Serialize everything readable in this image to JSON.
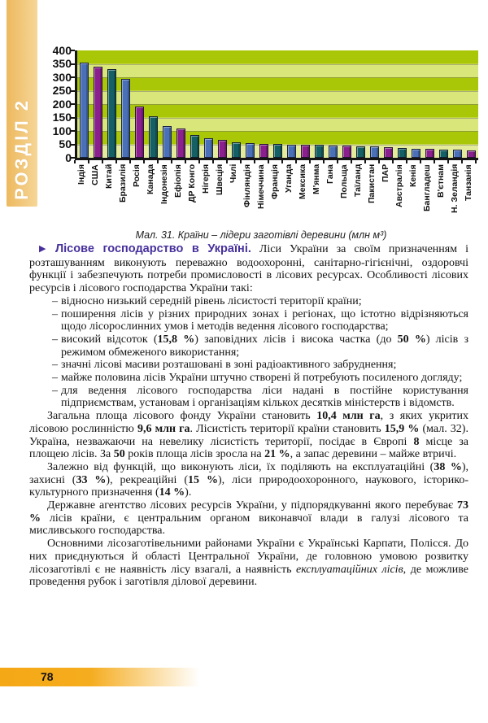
{
  "page": {
    "section_label": "РОЗДІЛ 2",
    "page_number": "78"
  },
  "chart_data": {
    "type": "bar",
    "caption": "Мал. 31. Країни – лідери заготівлі деревини (млн м³)",
    "unit": "млн м³",
    "categories": [
      "Індія",
      "США",
      "Китай",
      "Бразилія",
      "Росія",
      "Канада",
      "Індонезія",
      "Ефіопія",
      "ДР Конго",
      "Нігерія",
      "Швеція",
      "Чилі",
      "Фінляндія",
      "Німеччина",
      "Франція",
      "Уганда",
      "Мексика",
      "М'янма",
      "Гана",
      "Польща",
      "Таїланд",
      "Пакистан",
      "ПАР",
      "Австралія",
      "Кенія",
      "Бангладеш",
      "В'єтнам",
      "Н. Зеландія",
      "Танзанія"
    ],
    "values": [
      355,
      340,
      330,
      295,
      190,
      155,
      117,
      110,
      86,
      72,
      68,
      57,
      55,
      53,
      51,
      50,
      50,
      49,
      46,
      44,
      42,
      41,
      38,
      37,
      33,
      33,
      31,
      30,
      28
    ],
    "ylim": [
      0,
      400
    ],
    "ytick_step": 50,
    "grid": true,
    "legend": false,
    "bar_color_cycle": [
      "#4a70b8",
      "#8a1f8d",
      "#156065"
    ],
    "plot_stripe_dark": "#a9c607",
    "plot_stripe_light": "#d9e67a",
    "plot_stripe_bottom": "#e4ec9c"
  },
  "article": {
    "marker": "▶",
    "bullet_marker": "–",
    "heading": "Лісове господарство в Україні.",
    "paragraphs": [
      {
        "kind": "lead",
        "segments": [
          {
            "t": "Лісове господарство в Україні.",
            "heading": true
          },
          {
            "t": " Ліси України за своїм призначенням і розташуванням виконують переважно водоохоронні, санітарно-гігієнічні, оздоровчі функції і забезпечують потреби промисловості в лісових ресурсах. Особливості лісових ресурсів і лісового господарства України такі:"
          }
        ]
      },
      {
        "kind": "bullet",
        "segments": [
          {
            "t": "відносно низький середній рівень лісистості території країни;"
          }
        ]
      },
      {
        "kind": "bullet",
        "segments": [
          {
            "t": "поширення лісів у різних природних зонах і регіонах, що істотно відрізняються щодо лісорослинних умов і методів ведення лісового господарства;"
          }
        ]
      },
      {
        "kind": "bullet",
        "segments": [
          {
            "t": "високий відсоток ("
          },
          {
            "t": "15,8 %",
            "b": true
          },
          {
            "t": ") заповідних лісів і висока частка (до "
          },
          {
            "t": "50 %",
            "b": true
          },
          {
            "t": ") лісів з режимом обмеженого використання;"
          }
        ]
      },
      {
        "kind": "bullet",
        "segments": [
          {
            "t": "значні лісові масиви розташовані в зоні радіоактивного забруднення;"
          }
        ]
      },
      {
        "kind": "bullet",
        "segments": [
          {
            "t": "майже половина лісів України штучно створені й потребують посиленого догляду;"
          }
        ]
      },
      {
        "kind": "bullet",
        "segments": [
          {
            "t": "для ведення лісового господарства ліси надані в постійне користування підприємствам, установам і організаціям кількох десятків міністерств і відомств."
          }
        ]
      },
      {
        "kind": "indent",
        "segments": [
          {
            "t": "Загальна площа лісового фонду України становить "
          },
          {
            "t": "10,4 млн га",
            "b": true
          },
          {
            "t": ", з яких укритих лісовою рослинністю "
          },
          {
            "t": "9,6 млн га",
            "b": true
          },
          {
            "t": ". Лісистість території країни становить "
          },
          {
            "t": "15,9 %",
            "b": true
          },
          {
            "t": " (мал. 32). Україна, незважаючи на невелику лісистість території, посідає в Європі "
          },
          {
            "t": "8",
            "b": true
          },
          {
            "t": " місце за площею лісів. За "
          },
          {
            "t": "50",
            "b": true
          },
          {
            "t": " років площа лісів зросла на "
          },
          {
            "t": "21 %",
            "b": true
          },
          {
            "t": ", а запас деревини – майже втричі."
          }
        ]
      },
      {
        "kind": "indent",
        "segments": [
          {
            "t": "Залежно від функцій, що виконують ліси, їх поділяють на експлуатаційні ("
          },
          {
            "t": "38 %",
            "b": true
          },
          {
            "t": "), захисні ("
          },
          {
            "t": "33 %",
            "b": true
          },
          {
            "t": "), рекреаційні ("
          },
          {
            "t": "15 %",
            "b": true
          },
          {
            "t": "), ліси природоохоронного, наукового, історико-культурного призначення ("
          },
          {
            "t": "14 %",
            "b": true
          },
          {
            "t": ")."
          }
        ]
      },
      {
        "kind": "indent",
        "segments": [
          {
            "t": "Державне агентство лісових ресурсів України, у підпорядкуванні якого перебуває "
          },
          {
            "t": "73 %",
            "b": true
          },
          {
            "t": " лісів країни, є центральним органом виконавчої влади в галузі лісового та мисливського господарства."
          }
        ]
      },
      {
        "kind": "indent",
        "segments": [
          {
            "t": "Основними лісозаготівельними районами України є Українські Карпати, Полісся. До них приєднуються й області Центральної України, де головною умовою розвитку лісозаготівлі є не наявність лісу взагалі, а наявність "
          },
          {
            "t": "експлуатаційних лісів",
            "i": true
          },
          {
            "t": ", де можливе проведення рубок і заготівля ділової деревини."
          }
        ]
      }
    ]
  }
}
